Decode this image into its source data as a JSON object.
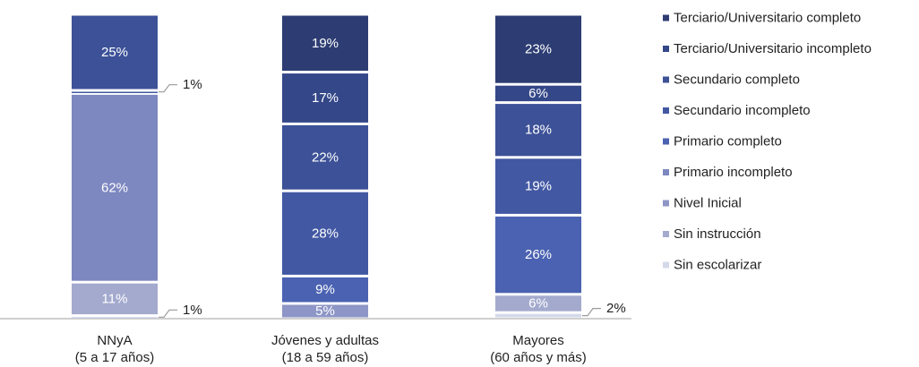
{
  "chart_data": {
    "type": "bar",
    "stacked": true,
    "normalized": true,
    "categories": [
      {
        "line1": "NNyA",
        "line2": "(5 a 17 años)"
      },
      {
        "line1": "Jóvenes y adultas",
        "line2": "(18 a 59 años)"
      },
      {
        "line1": "Mayores",
        "line2": "(60 años  y más)"
      }
    ],
    "series": [
      {
        "name": "Sin escolarizar",
        "color": "#d4d9ea",
        "values": [
          1,
          0,
          2
        ],
        "labels": [
          "1%",
          "",
          "2%"
        ]
      },
      {
        "name": "Sin instrucción",
        "color": "#a3aace",
        "values": [
          11,
          0,
          6
        ],
        "labels": [
          "11%",
          "",
          "6%"
        ]
      },
      {
        "name": "Nivel Inicial",
        "color": "#8d96c6",
        "values": [
          0,
          5,
          0
        ],
        "labels": [
          "",
          "5%",
          ""
        ]
      },
      {
        "name": "Primario incompleto",
        "color": "#7d87c0",
        "values": [
          62,
          0,
          0
        ],
        "labels": [
          "62%",
          "",
          ""
        ]
      },
      {
        "name": "Primario completo",
        "color": "#4a62b1",
        "values": [
          0,
          9,
          26
        ],
        "labels": [
          "",
          "9%",
          "26%"
        ]
      },
      {
        "name": "Secundario incompleto",
        "color": "#4258a3",
        "values": [
          1,
          28,
          19
        ],
        "labels": [
          "1%",
          "28%",
          "19%"
        ]
      },
      {
        "name": "Secundario completo",
        "color": "#3c5197",
        "values": [
          25,
          22,
          18
        ],
        "labels": [
          "25%",
          "22%",
          "18%"
        ]
      },
      {
        "name": "Terciario/Universitario incompleto",
        "color": "#344788",
        "values": [
          0,
          17,
          6
        ],
        "labels": [
          "",
          "17%",
          "6%"
        ]
      },
      {
        "name": "Terciario/Universitario completo",
        "color": "#2d3d73",
        "values": [
          0,
          19,
          23
        ],
        "labels": [
          "",
          "19%",
          "23%"
        ]
      }
    ],
    "ylim": [
      0,
      100
    ],
    "legend_position": "right",
    "grid": false
  }
}
